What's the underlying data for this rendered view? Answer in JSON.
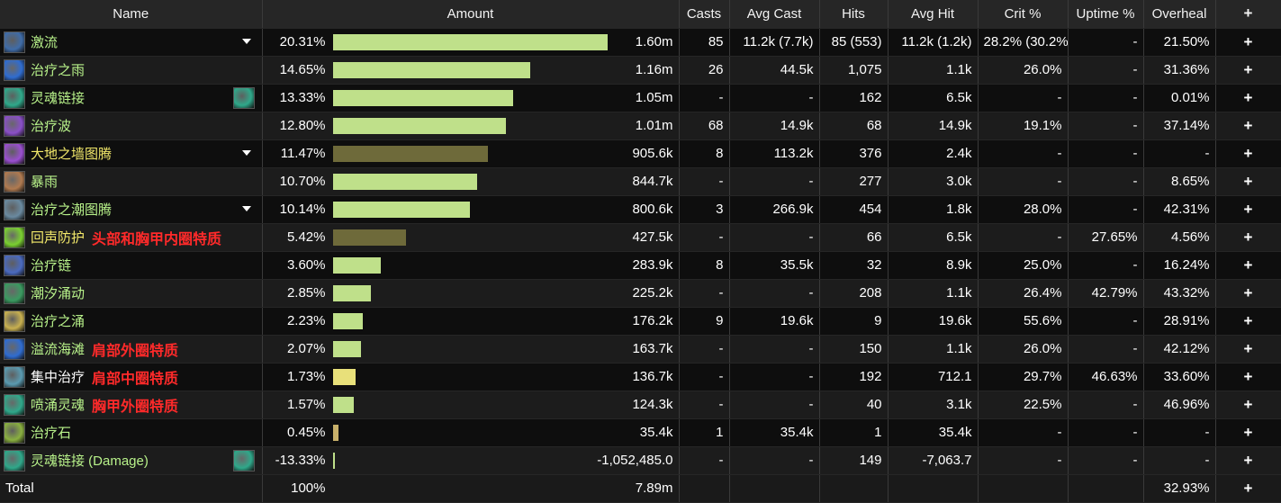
{
  "headers": [
    "Name",
    "Amount",
    "Casts",
    "Avg Cast",
    "Hits",
    "Avg Hit",
    "Crit %",
    "Uptime %",
    "Overheal",
    "+"
  ],
  "colors": {
    "bar_light": "#bfe08a",
    "bar_dark": "#6e6a3a",
    "bar_yellow": "#e8e07a",
    "bar_tan": "#c8b06a",
    "annotation": "#ff2a2a"
  },
  "rows": [
    {
      "name": "激流",
      "annot": "",
      "name_color": "green",
      "arrow": true,
      "right_icon": false,
      "icon": "riptide-icon",
      "icon_color": "#3f6ca8",
      "pct": "20.31%",
      "frac": 1.0,
      "bar": "#bfe08a",
      "amount": "1.60m",
      "casts": "85",
      "avg_cast": "11.2k (7.7k)",
      "hits": "85 (553)",
      "avg_hit": "11.2k (1.2k)",
      "crit": "28.2% (30.2%)",
      "uptime": "-",
      "overheal": "21.50%",
      "plus": "+"
    },
    {
      "name": "治疗之雨",
      "annot": "",
      "name_color": "green",
      "arrow": false,
      "right_icon": false,
      "icon": "healing-rain-icon",
      "icon_color": "#2f6cd0",
      "pct": "14.65%",
      "frac": 0.721,
      "bar": "#bfe08a",
      "amount": "1.16m",
      "casts": "26",
      "avg_cast": "44.5k",
      "hits": "1,075",
      "avg_hit": "1.1k",
      "crit": "26.0%",
      "uptime": "-",
      "overheal": "31.36%",
      "plus": "+"
    },
    {
      "name": "灵魂链接",
      "annot": "",
      "name_color": "green",
      "arrow": false,
      "right_icon": true,
      "icon": "spirit-link-icon",
      "icon_color": "#2fa88a",
      "pct": "13.33%",
      "frac": 0.656,
      "bar": "#bfe08a",
      "amount": "1.05m",
      "casts": "-",
      "avg_cast": "-",
      "hits": "162",
      "avg_hit": "6.5k",
      "crit": "-",
      "uptime": "-",
      "overheal": "0.01%",
      "plus": "+"
    },
    {
      "name": "治疗波",
      "annot": "",
      "name_color": "green",
      "arrow": false,
      "right_icon": false,
      "icon": "healing-wave-icon",
      "icon_color": "#8a4fc8",
      "pct": "12.80%",
      "frac": 0.63,
      "bar": "#bfe08a",
      "amount": "1.01m",
      "casts": "68",
      "avg_cast": "14.9k",
      "hits": "68",
      "avg_hit": "14.9k",
      "crit": "19.1%",
      "uptime": "-",
      "overheal": "37.14%",
      "plus": "+"
    },
    {
      "name": "大地之墙图腾",
      "annot": "",
      "name_color": "yellow",
      "arrow": true,
      "right_icon": false,
      "icon": "earthen-wall-totem-icon",
      "icon_color": "#9a4fd0",
      "pct": "11.47%",
      "frac": 0.565,
      "bar": "#6e6a3a",
      "amount": "905.6k",
      "casts": "8",
      "avg_cast": "113.2k",
      "hits": "376",
      "avg_hit": "2.4k",
      "crit": "-",
      "uptime": "-",
      "overheal": "-",
      "plus": "+"
    },
    {
      "name": "暴雨",
      "annot": "",
      "name_color": "green",
      "arrow": false,
      "right_icon": false,
      "icon": "downpour-icon",
      "icon_color": "#b07a50",
      "pct": "10.70%",
      "frac": 0.527,
      "bar": "#bfe08a",
      "amount": "844.7k",
      "casts": "-",
      "avg_cast": "-",
      "hits": "277",
      "avg_hit": "3.0k",
      "crit": "-",
      "uptime": "-",
      "overheal": "8.65%",
      "plus": "+"
    },
    {
      "name": "治疗之潮图腾",
      "annot": "",
      "name_color": "green",
      "arrow": true,
      "right_icon": false,
      "icon": "healing-tide-totem-icon",
      "icon_color": "#6a8aa0",
      "pct": "10.14%",
      "frac": 0.499,
      "bar": "#bfe08a",
      "amount": "800.6k",
      "casts": "3",
      "avg_cast": "266.9k",
      "hits": "454",
      "avg_hit": "1.8k",
      "crit": "28.0%",
      "uptime": "-",
      "overheal": "42.31%",
      "plus": "+"
    },
    {
      "name": "回声防护",
      "annot": "头部和胸甲内圈特质",
      "name_color": "yellow",
      "arrow": false,
      "right_icon": false,
      "icon": "echoing-protection-icon",
      "icon_color": "#7ad030",
      "pct": "5.42%",
      "frac": 0.267,
      "bar": "#6e6a3a",
      "amount": "427.5k",
      "casts": "-",
      "avg_cast": "-",
      "hits": "66",
      "avg_hit": "6.5k",
      "crit": "-",
      "uptime": "27.65%",
      "overheal": "4.56%",
      "plus": "+"
    },
    {
      "name": "治疗链",
      "annot": "",
      "name_color": "green",
      "arrow": false,
      "right_icon": false,
      "icon": "chain-heal-icon",
      "icon_color": "#4a6ac0",
      "pct": "3.60%",
      "frac": 0.177,
      "bar": "#bfe08a",
      "amount": "283.9k",
      "casts": "8",
      "avg_cast": "35.5k",
      "hits": "32",
      "avg_hit": "8.9k",
      "crit": "25.0%",
      "uptime": "-",
      "overheal": "16.24%",
      "plus": "+"
    },
    {
      "name": "潮汐涌动",
      "annot": "",
      "name_color": "green",
      "arrow": false,
      "right_icon": false,
      "icon": "tidal-surge-icon",
      "icon_color": "#3a9a60",
      "pct": "2.85%",
      "frac": 0.14,
      "bar": "#bfe08a",
      "amount": "225.2k",
      "casts": "-",
      "avg_cast": "-",
      "hits": "208",
      "avg_hit": "1.1k",
      "crit": "26.4%",
      "uptime": "42.79%",
      "overheal": "43.32%",
      "plus": "+"
    },
    {
      "name": "治疗之涌",
      "annot": "",
      "name_color": "green",
      "arrow": false,
      "right_icon": false,
      "icon": "healing-surge-icon",
      "icon_color": "#c8b050",
      "pct": "2.23%",
      "frac": 0.11,
      "bar": "#bfe08a",
      "amount": "176.2k",
      "casts": "9",
      "avg_cast": "19.6k",
      "hits": "9",
      "avg_hit": "19.6k",
      "crit": "55.6%",
      "uptime": "-",
      "overheal": "28.91%",
      "plus": "+"
    },
    {
      "name": "溢流海滩",
      "annot": "肩部外圈特质",
      "name_color": "green",
      "arrow": false,
      "right_icon": false,
      "icon": "overflowing-shores-icon",
      "icon_color": "#2f6cd0",
      "pct": "2.07%",
      "frac": 0.102,
      "bar": "#bfe08a",
      "amount": "163.7k",
      "casts": "-",
      "avg_cast": "-",
      "hits": "150",
      "avg_hit": "1.1k",
      "crit": "26.0%",
      "uptime": "-",
      "overheal": "42.12%",
      "plus": "+"
    },
    {
      "name": "集中治疗",
      "annot": "肩部中圈特质",
      "name_color": "white",
      "arrow": false,
      "right_icon": false,
      "icon": "concentrated-mending-icon",
      "icon_color": "#5a9ab0",
      "pct": "1.73%",
      "frac": 0.085,
      "bar": "#e8e07a",
      "amount": "136.7k",
      "casts": "-",
      "avg_cast": "-",
      "hits": "192",
      "avg_hit": "712.1",
      "crit": "29.7%",
      "uptime": "46.63%",
      "overheal": "33.60%",
      "plus": "+"
    },
    {
      "name": "喷涌灵魂",
      "annot": "胸甲外圈特质",
      "name_color": "green",
      "arrow": false,
      "right_icon": false,
      "icon": "surging-spirit-icon",
      "icon_color": "#2fa88a",
      "pct": "1.57%",
      "frac": 0.077,
      "bar": "#bfe08a",
      "amount": "124.3k",
      "casts": "-",
      "avg_cast": "-",
      "hits": "40",
      "avg_hit": "3.1k",
      "crit": "22.5%",
      "uptime": "-",
      "overheal": "46.96%",
      "plus": "+"
    },
    {
      "name": "治疗石",
      "annot": "",
      "name_color": "green",
      "arrow": false,
      "right_icon": false,
      "icon": "healthstone-icon",
      "icon_color": "#8ab040",
      "pct": "0.45%",
      "frac": 0.022,
      "bar": "#c8b06a",
      "amount": "35.4k",
      "casts": "1",
      "avg_cast": "35.4k",
      "hits": "1",
      "avg_hit": "35.4k",
      "crit": "-",
      "uptime": "-",
      "overheal": "-",
      "plus": "+"
    },
    {
      "name": "灵魂链接 (Damage)",
      "annot": "",
      "name_color": "green",
      "arrow": false,
      "right_icon": true,
      "icon": "spirit-link-icon",
      "icon_color": "#2fa88a",
      "pct": "-13.33%",
      "frac": 0.006,
      "bar": "#bfe08a",
      "amount": "-1,052,485.0",
      "casts": "-",
      "avg_cast": "-",
      "hits": "149",
      "avg_hit": "-7,063.7",
      "crit": "-",
      "uptime": "-",
      "overheal": "-",
      "plus": "+"
    }
  ],
  "total": {
    "label": "Total",
    "pct": "100%",
    "amount": "7.89m",
    "overheal": "32.93%",
    "plus": "+"
  }
}
